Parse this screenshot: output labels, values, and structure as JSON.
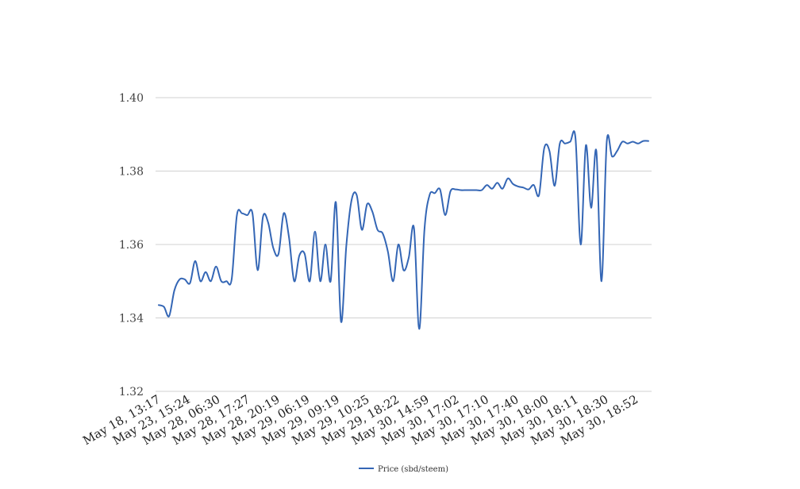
{
  "chart_data": {
    "type": "line",
    "title": "",
    "xlabel": "",
    "ylabel": "",
    "ylim": [
      1.32,
      1.4
    ],
    "yticks": [
      "1.32",
      "1.34",
      "1.36",
      "1.38",
      "1.40"
    ],
    "grid": true,
    "legend_position": "bottom-center",
    "x_tick_labels": [
      "May 18, 13:17",
      "May 23, 15:24",
      "May 28, 06:30",
      "May 28, 17:27",
      "May 28, 20:19",
      "May 29, 06:19",
      "May 29, 09:19",
      "May 29, 10:25",
      "May 29, 18:22",
      "May 30, 14:59",
      "May 30, 17:02",
      "May 30, 17:10",
      "May 30, 17:40",
      "May 30, 18:00",
      "May 30, 18:11",
      "May 30, 18:30",
      "May 30, 18:52"
    ],
    "series": [
      {
        "name": "Price (sbd/steem)",
        "color": "#3466b5",
        "values": [
          1.3435,
          1.343,
          1.3405,
          1.3475,
          1.3505,
          1.3505,
          1.3495,
          1.3555,
          1.35,
          1.3525,
          1.35,
          1.354,
          1.35,
          1.35,
          1.3505,
          1.368,
          1.3685,
          1.368,
          1.3685,
          1.353,
          1.3675,
          1.366,
          1.359,
          1.3575,
          1.3685,
          1.362,
          1.35,
          1.357,
          1.3575,
          1.35,
          1.3635,
          1.35,
          1.36,
          1.35,
          1.3715,
          1.339,
          1.3595,
          1.372,
          1.3735,
          1.364,
          1.371,
          1.369,
          1.364,
          1.363,
          1.358,
          1.35,
          1.36,
          1.353,
          1.3565,
          1.3645,
          1.337,
          1.364,
          1.3735,
          1.374,
          1.375,
          1.368,
          1.3745,
          1.375,
          1.3748,
          1.3748,
          1.3748,
          1.3748,
          1.3748,
          1.3762,
          1.3752,
          1.3768,
          1.3752,
          1.378,
          1.3765,
          1.3758,
          1.3755,
          1.375,
          1.3762,
          1.3735,
          1.3862,
          1.3855,
          1.376,
          1.3875,
          1.3875,
          1.388,
          1.389,
          1.36,
          1.387,
          1.37,
          1.3855,
          1.35,
          1.388,
          1.384,
          1.3855,
          1.388,
          1.3875,
          1.388,
          1.3875,
          1.3882,
          1.3882
        ]
      }
    ]
  }
}
